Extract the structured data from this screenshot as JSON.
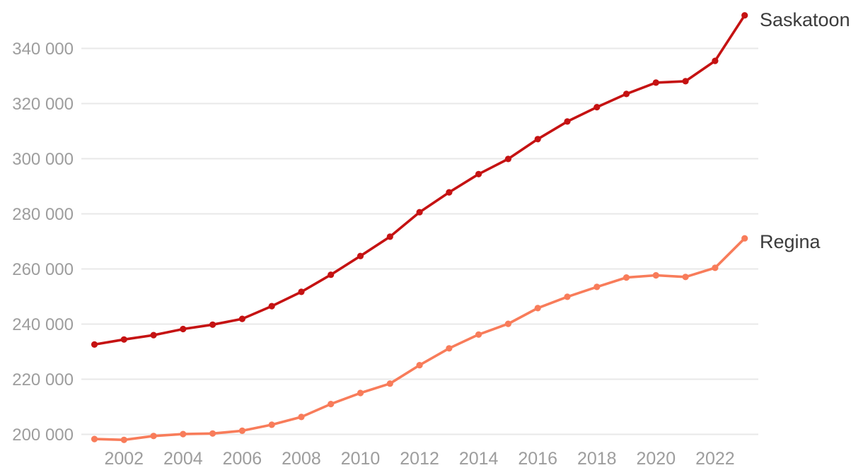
{
  "chart_data": {
    "type": "line",
    "title": "",
    "xlabel": "",
    "ylabel": "",
    "grid": "horizontal-only",
    "legend_position": "end-of-line-labels-right",
    "x": [
      2001,
      2002,
      2003,
      2004,
      2005,
      2006,
      2007,
      2008,
      2009,
      2010,
      2011,
      2012,
      2013,
      2014,
      2015,
      2016,
      2017,
      2018,
      2019,
      2020,
      2021,
      2022,
      2023
    ],
    "x_tick_labels": [
      "2002",
      "2004",
      "2006",
      "2008",
      "2010",
      "2012",
      "2014",
      "2016",
      "2018",
      "2020",
      "2022"
    ],
    "x_tick_years": [
      2002,
      2004,
      2006,
      2008,
      2010,
      2012,
      2014,
      2016,
      2018,
      2020,
      2022
    ],
    "ylim": [
      195000,
      356000
    ],
    "xlim": [
      2001,
      2023
    ],
    "y_ticks": [
      {
        "value": 200000,
        "label": "200 000"
      },
      {
        "value": 220000,
        "label": "220 000"
      },
      {
        "value": 240000,
        "label": "240 000"
      },
      {
        "value": 260000,
        "label": "260 000"
      },
      {
        "value": 280000,
        "label": "280 000"
      },
      {
        "value": 300000,
        "label": "300 000"
      },
      {
        "value": 320000,
        "label": "320 000"
      },
      {
        "value": 340000,
        "label": "340 000"
      }
    ],
    "series": [
      {
        "name": "Saskatoon",
        "color": "#c51212",
        "values": [
          232600,
          234400,
          236000,
          238200,
          239800,
          241900,
          246500,
          251700,
          257900,
          264700,
          271700,
          280600,
          287800,
          294400,
          299900,
          307100,
          313500,
          318700,
          323500,
          327600,
          328100,
          335500,
          352000
        ]
      },
      {
        "name": "Regina",
        "color": "#f87c5a",
        "values": [
          198300,
          198000,
          199400,
          200100,
          200300,
          201300,
          203500,
          206300,
          211000,
          215000,
          218400,
          225100,
          231200,
          236200,
          240100,
          245800,
          249900,
          253500,
          256900,
          257700,
          257100,
          260400,
          271100
        ]
      }
    ],
    "colors": {
      "gridline": "#e8e8e8",
      "axis_text": "#9d9d9d",
      "series_label_text": "#3b3b3b",
      "background": "#ffffff"
    }
  }
}
